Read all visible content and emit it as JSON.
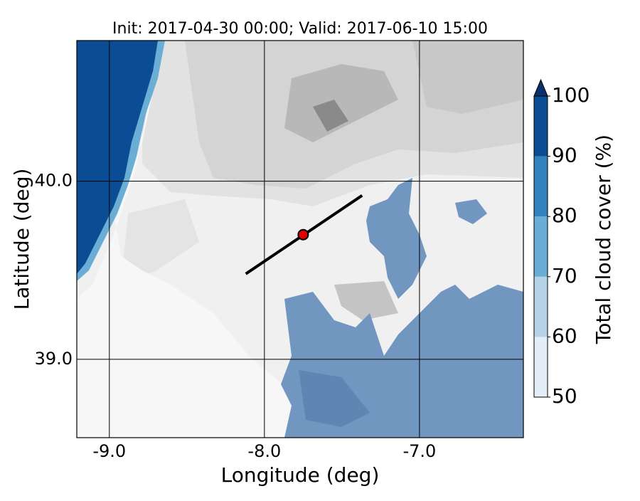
{
  "chart_data": {
    "type": "map",
    "title": "Init: 2017-04-30 00:00; Valid: 2017-06-10 15:00",
    "xlabel": "Longitude (deg)",
    "ylabel": "Latitude (deg)",
    "xlim": [
      -9.21,
      -6.33
    ],
    "ylim": [
      38.56,
      40.79
    ],
    "xticks": [
      {
        "value": -9,
        "label": "-9.0"
      },
      {
        "value": -8,
        "label": "-8.0"
      },
      {
        "value": -7,
        "label": "-7.0"
      }
    ],
    "yticks": [
      {
        "value": 39,
        "label": "39.0"
      },
      {
        "value": 40,
        "label": "40.0"
      }
    ],
    "grid": true,
    "transect": {
      "lon": [
        -8.12,
        -7.37
      ],
      "lat": [
        39.48,
        39.92
      ],
      "color": "#000000"
    },
    "marker": {
      "lon": -7.75,
      "lat": 39.7,
      "color": "#e00000"
    },
    "colorbar": {
      "label": "Total cloud cover (%)",
      "levels": [
        50,
        60,
        70,
        80,
        90,
        100
      ],
      "colors": [
        "#e3eef8",
        "#b6d3e8",
        "#6aaed6",
        "#3282be",
        "#0b4d94"
      ],
      "extend_color": "#08306b"
    }
  }
}
